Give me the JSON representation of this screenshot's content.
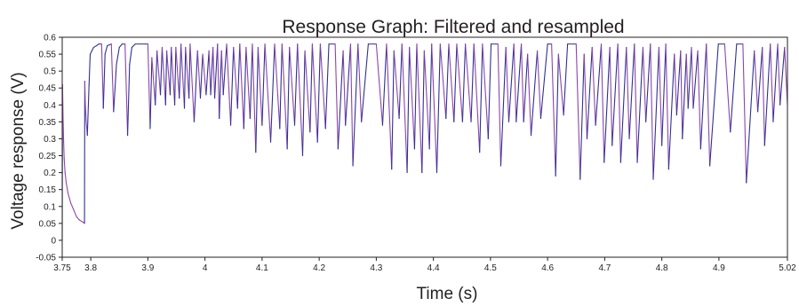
{
  "chart_data": {
    "type": "line",
    "title": "Response Graph: Filtered and resampled",
    "xlabel": "Time (s)",
    "ylabel": "Voltage response (V)",
    "xlim": [
      3.75,
      5.02
    ],
    "ylim": [
      -0.05,
      0.6
    ],
    "xticks": [
      3.75,
      3.8,
      3.9,
      4,
      4.1,
      4.2,
      4.3,
      4.4,
      4.5,
      4.6,
      4.7,
      4.8,
      4.9,
      5.02
    ],
    "xtick_labels": [
      "3.75",
      "3.8",
      "3.9",
      "4",
      "4.1",
      "4.2",
      "4.3",
      "4.4",
      "4.5",
      "4.6",
      "4.7",
      "4.8",
      "4.9",
      "5.02"
    ],
    "yticks": [
      -0.05,
      0,
      0.05,
      0.1,
      0.15,
      0.2,
      0.25,
      0.3,
      0.35,
      0.4,
      0.45,
      0.5,
      0.55,
      0.6
    ],
    "ytick_labels": [
      "-0.05",
      "0",
      "0.05",
      "0.1",
      "0.15",
      "0.2",
      "0.25",
      "0.3",
      "0.35",
      "0.4",
      "0.45",
      "0.5",
      "0.55",
      "0.6"
    ],
    "grid": false,
    "legend": "none",
    "colors": {
      "series_rise": "#2e3192",
      "series_decay": "#8e44ad",
      "axis": "#231f20"
    },
    "series": [
      {
        "x": [
          3.75,
          3.7505,
          3.7515,
          3.7525,
          3.7535,
          3.755,
          3.757,
          3.76,
          3.765,
          3.77,
          3.775,
          3.78,
          3.785,
          3.789,
          3.7895,
          3.7905,
          3.792,
          3.794,
          3.797,
          3.799,
          3.802,
          3.805,
          3.81,
          3.814,
          3.819,
          3.822,
          3.825,
          3.829,
          3.836,
          3.84,
          3.845,
          3.85,
          3.855,
          3.86,
          3.8645,
          3.868,
          3.872,
          3.878,
          3.885,
          3.8955,
          3.9,
          3.904,
          3.907,
          3.913,
          3.916,
          3.922,
          3.925,
          3.931,
          3.933,
          3.939,
          3.941,
          3.947,
          3.949,
          3.955,
          3.958,
          3.964,
          3.966,
          3.972,
          3.974,
          3.981,
          3.987,
          3.992,
          3.996,
          4.002,
          4.007,
          4.01,
          4.014,
          4.017,
          4.022,
          4.025,
          4.029,
          4.032,
          4.038,
          4.045,
          4.05,
          4.057,
          4.061,
          4.068,
          4.072,
          4.079,
          4.083,
          4.089,
          4.093,
          4.1,
          4.105,
          4.115,
          4.122,
          4.131,
          4.135,
          4.144,
          4.148,
          4.157,
          4.162,
          4.171,
          4.175,
          4.184,
          4.188,
          4.197,
          4.202,
          4.211,
          4.217,
          4.228,
          4.233,
          4.242,
          4.246,
          4.255,
          4.259,
          4.268,
          4.274,
          4.286,
          4.3,
          4.311,
          4.318,
          4.327,
          4.331,
          4.34,
          4.345,
          4.354,
          4.358,
          4.367,
          4.371,
          4.38,
          4.384,
          4.393,
          4.397,
          4.406,
          4.412,
          4.422,
          4.427,
          4.436,
          4.441,
          4.451,
          4.456,
          4.466,
          4.471,
          4.481,
          4.486,
          4.496,
          4.501,
          4.513,
          4.518,
          4.527,
          4.532,
          4.541,
          4.545,
          4.554,
          4.558,
          4.565,
          4.571,
          4.582,
          4.588,
          4.6,
          4.607,
          4.614,
          4.619,
          4.628,
          4.635,
          4.65,
          4.657,
          4.664,
          4.669,
          4.678,
          4.684,
          4.694,
          4.699,
          4.709,
          4.713,
          4.723,
          4.728,
          4.738,
          4.743,
          4.752,
          4.757,
          4.767,
          4.772,
          4.78,
          4.785,
          4.795,
          4.8,
          4.807,
          4.812,
          4.822,
          4.826,
          4.833,
          4.836,
          4.843,
          4.846,
          4.852,
          4.855,
          4.863,
          4.868,
          4.878,
          4.884,
          4.899,
          4.91,
          4.92,
          4.931,
          4.942,
          4.948,
          4.962,
          4.968,
          4.976,
          4.98,
          4.99,
          4.995,
          5.003,
          5.007,
          5.015,
          5.02
        ],
        "y": [
          0.0,
          0.46,
          0.36,
          0.29,
          0.24,
          0.2,
          0.17,
          0.14,
          0.11,
          0.09,
          0.07,
          0.06,
          0.055,
          0.05,
          0.47,
          0.4,
          0.35,
          0.31,
          0.46,
          0.55,
          0.56,
          0.57,
          0.575,
          0.58,
          0.58,
          0.39,
          0.55,
          0.575,
          0.58,
          0.38,
          0.52,
          0.57,
          0.58,
          0.58,
          0.31,
          0.52,
          0.57,
          0.58,
          0.58,
          0.58,
          0.58,
          0.33,
          0.54,
          0.4,
          0.56,
          0.43,
          0.57,
          0.4,
          0.56,
          0.43,
          0.57,
          0.4,
          0.57,
          0.42,
          0.58,
          0.39,
          0.57,
          0.42,
          0.58,
          0.35,
          0.56,
          0.42,
          0.55,
          0.43,
          0.56,
          0.43,
          0.57,
          0.42,
          0.58,
          0.36,
          0.56,
          0.43,
          0.58,
          0.34,
          0.57,
          0.39,
          0.58,
          0.33,
          0.57,
          0.36,
          0.58,
          0.26,
          0.57,
          0.34,
          0.58,
          0.29,
          0.58,
          0.33,
          0.58,
          0.27,
          0.57,
          0.34,
          0.58,
          0.25,
          0.56,
          0.32,
          0.58,
          0.29,
          0.58,
          0.33,
          0.58,
          0.58,
          0.27,
          0.56,
          0.34,
          0.58,
          0.22,
          0.58,
          0.35,
          0.58,
          0.58,
          0.34,
          0.58,
          0.21,
          0.56,
          0.36,
          0.58,
          0.2,
          0.57,
          0.27,
          0.58,
          0.2,
          0.56,
          0.27,
          0.58,
          0.2,
          0.58,
          0.36,
          0.58,
          0.35,
          0.58,
          0.35,
          0.58,
          0.35,
          0.58,
          0.26,
          0.58,
          0.3,
          0.58,
          0.58,
          0.22,
          0.57,
          0.35,
          0.58,
          0.35,
          0.58,
          0.35,
          0.55,
          0.31,
          0.56,
          0.36,
          0.58,
          0.58,
          0.19,
          0.55,
          0.37,
          0.58,
          0.58,
          0.18,
          0.55,
          0.3,
          0.57,
          0.34,
          0.58,
          0.23,
          0.57,
          0.28,
          0.58,
          0.23,
          0.57,
          0.3,
          0.58,
          0.23,
          0.57,
          0.35,
          0.58,
          0.18,
          0.57,
          0.28,
          0.58,
          0.21,
          0.55,
          0.37,
          0.56,
          0.3,
          0.55,
          0.39,
          0.57,
          0.39,
          0.56,
          0.27,
          0.58,
          0.22,
          0.58,
          0.58,
          0.32,
          0.58,
          0.58,
          0.17,
          0.56,
          0.38,
          0.57,
          0.28,
          0.58,
          0.35,
          0.58,
          0.4,
          0.57,
          0.4
        ]
      }
    ]
  }
}
